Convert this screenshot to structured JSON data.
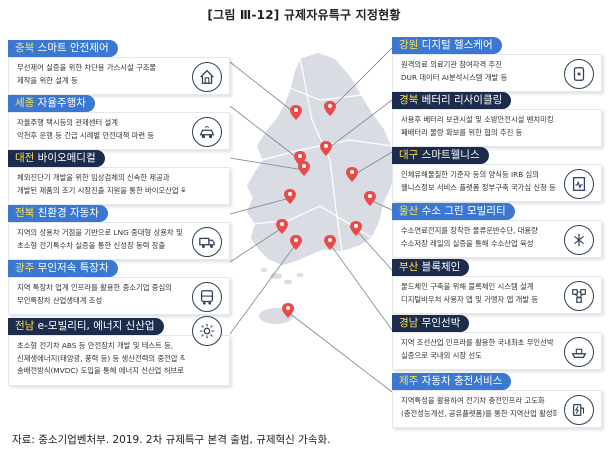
{
  "figure_title": "[그림 Ⅲ-12] 규제자유특구 지정현황",
  "source_note": "자료: 중소기업벤처부. 2019. 2차 규제특구 본격 출범, 규제혁신 가속화.",
  "colors": {
    "blue": "#3a78d2",
    "navy": "#1d2c4d",
    "highlight": "#ffe24a",
    "pin": "#e94a4a",
    "map": "#d9dde3"
  },
  "zones": [
    {
      "region": "충북",
      "title": "스마트 안전제어",
      "lines": [
        "무선제어 실증을 위한 차단용 가스시설 구조물",
        "제작을 위한 설계 등"
      ],
      "icon": "house-control-icon"
    },
    {
      "region": "세종",
      "title": "자율주행차",
      "lines": [
        "자율주행 택시등의 관제센터 설계",
        "악천후 운행 등 긴급 시례별 안전대책 마련 등"
      ],
      "icon": "autonomous-car-icon"
    },
    {
      "region": "대전",
      "title": "바이오메디컬",
      "lines": [
        "체외진단기 개발을 위한 임상검체의 신속한 제공과",
        "개발된 제품의 조기 시장진출 지원을 통한 바이오산업 육성"
      ],
      "icon": "microscope-icon"
    },
    {
      "region": "전북",
      "title": "친환경 자동차",
      "lines": [
        "지역의 상용차 거점을 기반으로 LNG 중대형 상용차 및",
        "초소형 전기특수차 실증을 통한 신성장 동력 창출"
      ],
      "icon": "truck-icon"
    },
    {
      "region": "광주",
      "title": "무인저속 특장차",
      "lines": [
        "지역 특장차 업계 인프라를 활용한 중소기업 중심의",
        "무인특장차 산업생태계 조성"
      ],
      "icon": "bus-icon"
    },
    {
      "region": "전남",
      "title": "e-모빌리티, 에너지 신산업",
      "lines": [
        "초소형 전기차 ABS 등 안전장치 개발 및 테스트 등,",
        "신재생에너지(태양광, 풍력 등) 등 생산전력의 중전압 직류",
        "송배전방식(MVDC) 도입을 통해 에너지 신산업 허브로 육성"
      ],
      "icon": "energy-icon"
    },
    {
      "region": "강원",
      "title": "디지털 헬스케어",
      "lines": [
        "원격의료 의료기관 참여자격 추진",
        "DUR 데이터 AI분석시스템 개발 등"
      ],
      "icon": "health-device-icon"
    },
    {
      "region": "경북",
      "title": "베터리 리사이클링",
      "lines": [
        "사용후 베터리 보관시설 및 소방안전시설 벤치마킹",
        "폐배터리 물량 확보를 위한 협의 추진 등"
      ],
      "icon": "battery-icon"
    },
    {
      "region": "대구",
      "title": "스마트웰니스",
      "lines": [
        "인체유해물질한 기준자 등의 양식등 IRB 심의",
        "웰니스정보 서비스 플랫폼 정부구축 국가심 신청 등"
      ],
      "icon": "wellness-icon"
    },
    {
      "region": "울산",
      "title": "수소 그린 모빌리티",
      "lines": [
        "수소연료전지를 장착한 물류운반수단, 대용량",
        "수소저장 레일의 실증을 통해 수소산업 육성"
      ],
      "icon": "hydrogen-icon"
    },
    {
      "region": "부산",
      "title": "블록체인",
      "lines": [
        "물드체인 구축을 위해 블록체인 시스템 설계",
        "디지털바우처 사용자 앱 및 가맹자 앱 개발 등"
      ],
      "icon": "blockchain-icon"
    },
    {
      "region": "경남",
      "title": "무인선박",
      "lines": [
        "지역 조선산업 인프라를 활용한 국내최초 무인선박",
        "실증으로 국내외 시장 선도"
      ],
      "icon": "ship-icon"
    },
    {
      "region": "제주",
      "title": "자동차 충전서비스",
      "lines": [
        "지역특성을 활용하여 전기차 충전인프라 고도화",
        "(충전성능개선, 공유플랫폼)를 통한 지역산업 활성화"
      ],
      "icon": "charging-icon"
    }
  ]
}
